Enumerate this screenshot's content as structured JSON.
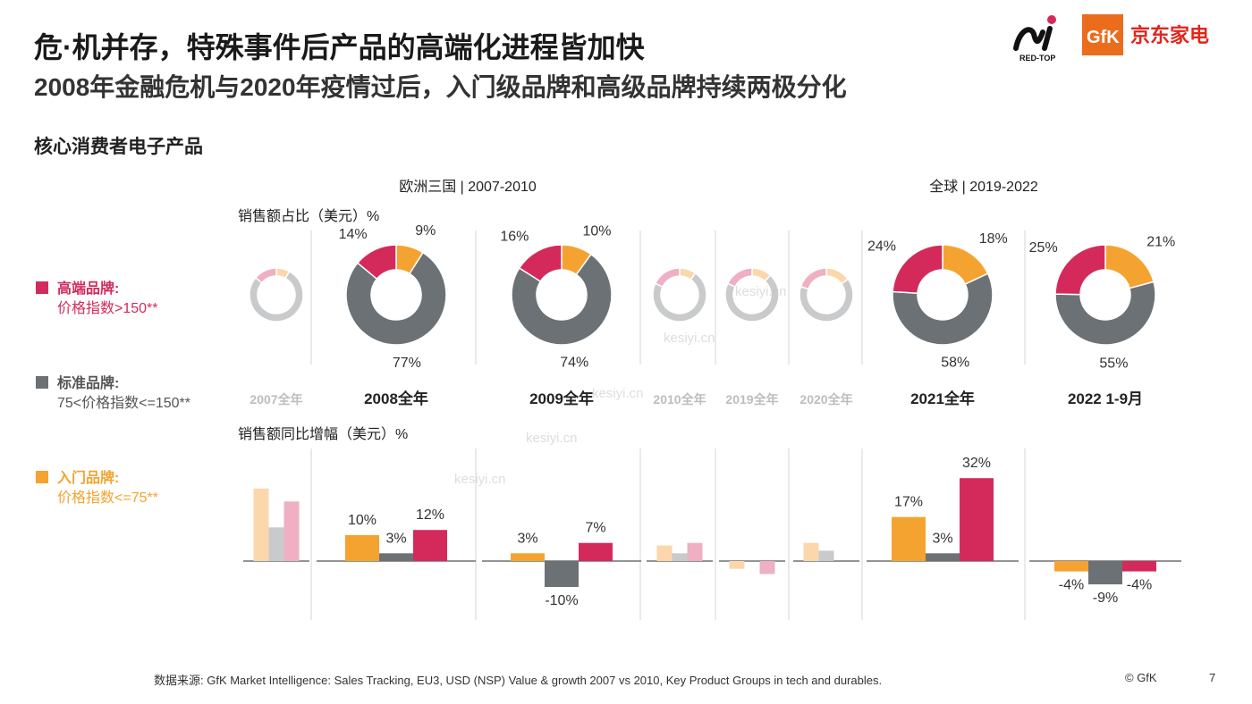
{
  "header": {
    "title": "危·机并存，特殊事件后产品的高端化进程皆加快",
    "subtitle": "2008年金融危机与2020年疫情过后，入门级品牌和高级品牌持续两极分化",
    "section": "核心消费者电子产品"
  },
  "logos": {
    "redtop": "RED-TOP",
    "gfk": "GfK",
    "jd": "京东家电"
  },
  "legend": {
    "premium": {
      "name": "高端品牌:",
      "desc": "价格指数>150**",
      "color": "#d42a5b"
    },
    "standard": {
      "name": "标准品牌:",
      "desc": "75<价格指数<=150**",
      "color": "#6c7175"
    },
    "entry": {
      "name": "入门品牌:",
      "desc": "价格指数<=75**",
      "color": "#f5a330"
    }
  },
  "footer": {
    "source": "数据来源: GfK Market Intelligence: Sales Tracking, EU3, USD (NSP) Value & growth 2007 vs 2010, Key Product Groups in tech and durables.",
    "copyright": "© GfK",
    "page": "7"
  },
  "watermarks": [
    "kesiyi.cn",
    "kesiyi.cn",
    "kesiyi.cn",
    "kesiyi.cn",
    "kesiyi.cn"
  ],
  "chart_data": {
    "type": "pie",
    "region_labels": [
      "欧洲三国 | 2007-2010",
      "全球 | 2019-2022"
    ],
    "share_label": "销售额占比（美元）%",
    "growth_label": "销售额同比增幅（美元）%",
    "series_order": [
      "entry",
      "standard",
      "premium"
    ],
    "colors": {
      "entry": "#f5a330",
      "standard": "#6c7175",
      "premium": "#d42a5b"
    },
    "faded_colors": {
      "entry": "#fbd7ab",
      "standard": "#c8cacc",
      "premium": "#eeb0c2"
    },
    "periods": [
      {
        "label": "2007全年",
        "faded": true,
        "share": {
          "entry": 8,
          "standard": 78,
          "premium": 14
        },
        "growth": {
          "entry": 28,
          "standard": 13,
          "premium": 23
        }
      },
      {
        "label": "2008全年",
        "faded": false,
        "share": {
          "entry": 9,
          "standard": 77,
          "premium": 14
        },
        "growth": {
          "entry": 10,
          "standard": 3,
          "premium": 12
        }
      },
      {
        "label": "2009全年",
        "faded": false,
        "share": {
          "entry": 10,
          "standard": 74,
          "premium": 16
        },
        "growth": {
          "entry": 3,
          "standard": -10,
          "premium": 7
        }
      },
      {
        "label": "2010全年",
        "faded": true,
        "share": {
          "entry": 10,
          "standard": 72,
          "premium": 18
        },
        "growth": {
          "entry": 6,
          "standard": 3,
          "premium": 7
        }
      },
      {
        "label": "2019全年",
        "faded": true,
        "share": {
          "entry": 12,
          "standard": 70,
          "premium": 18
        },
        "growth": {
          "entry": -3,
          "standard": 0,
          "premium": -5
        }
      },
      {
        "label": "2020全年",
        "faded": true,
        "share": {
          "entry": 15,
          "standard": 65,
          "premium": 20
        },
        "growth": {
          "entry": 7,
          "standard": 4,
          "premium": 0
        }
      },
      {
        "label": "2021全年",
        "faded": false,
        "share": {
          "entry": 18,
          "standard": 58,
          "premium": 24
        },
        "growth": {
          "entry": 17,
          "standard": 3,
          "premium": 32
        }
      },
      {
        "label": "2022 1-9月",
        "faded": false,
        "share": {
          "entry": 21,
          "standard": 55,
          "premium": 25
        },
        "growth": {
          "entry": -4,
          "standard": -9,
          "premium": -4
        }
      }
    ],
    "share_labels": [
      null,
      {
        "premium": "14%",
        "entry": "9%",
        "standard": "77%"
      },
      {
        "premium": "16%",
        "entry": "10%",
        "standard": "74%"
      },
      null,
      null,
      null,
      {
        "premium": "24%",
        "entry": "18%",
        "standard": "58%"
      },
      {
        "premium": "25%",
        "entry": "21%",
        "standard": "55%"
      }
    ],
    "growth_labels": [
      null,
      {
        "entry": "10%",
        "standard": "3%",
        "premium": "12%"
      },
      {
        "entry": "3%",
        "standard": "-10%",
        "premium": "7%"
      },
      null,
      null,
      null,
      {
        "entry": "17%",
        "standard": "3%",
        "premium": "32%"
      },
      {
        "entry": "-4%",
        "standard": "-9%",
        "premium": "-4%"
      }
    ]
  }
}
